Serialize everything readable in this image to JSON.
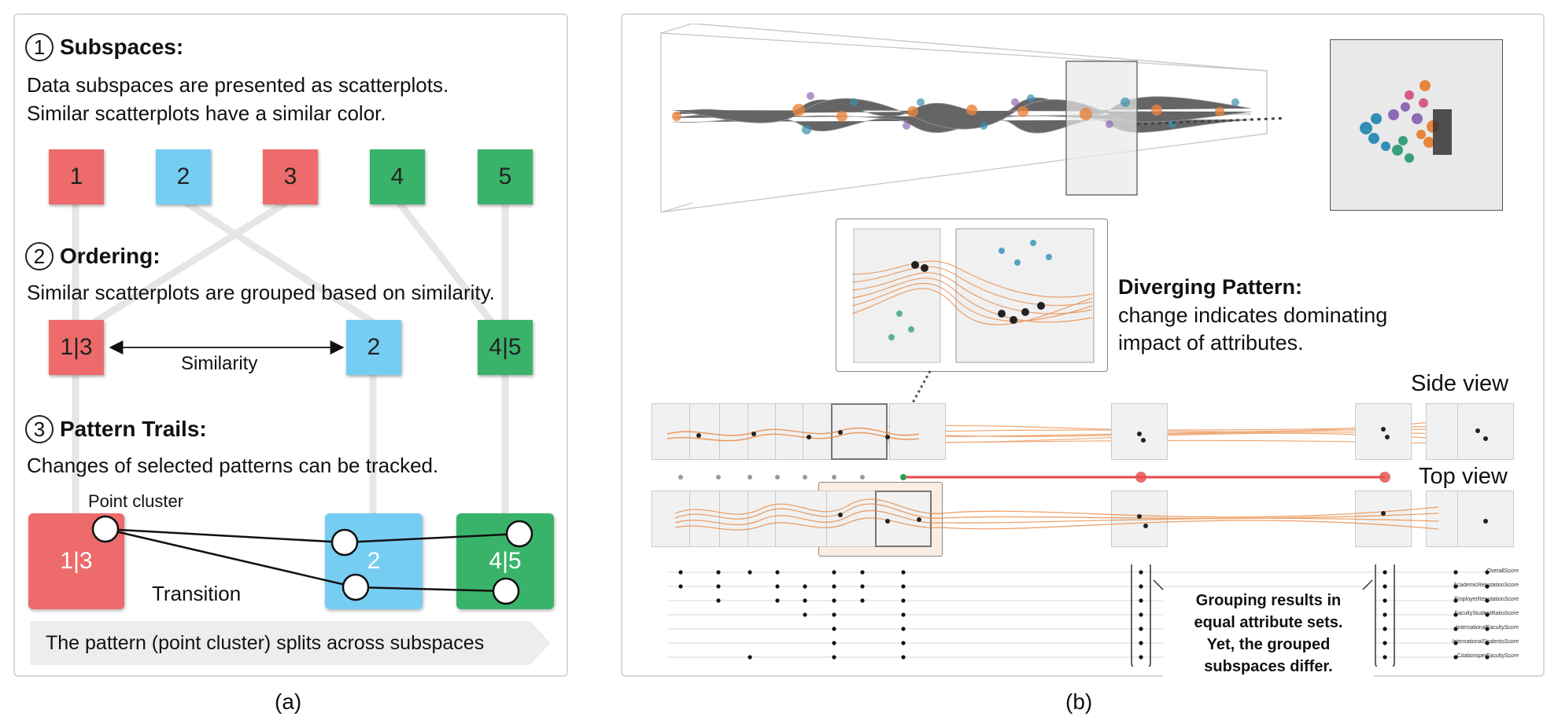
{
  "panel_a": {
    "sections": [
      {
        "num": "1",
        "title": "Subspaces:"
      },
      {
        "num": "2",
        "title": "Ordering:"
      },
      {
        "num": "3",
        "title": "Pattern Trails:"
      }
    ],
    "subspaces_desc": [
      "Data subspaces are presented as scatterplots.",
      "Similar scatterplots have a similar color."
    ],
    "boxes_row1": [
      "1",
      "2",
      "3",
      "4",
      "5"
    ],
    "ordering_desc": "Similar scatterplots are grouped based on similarity.",
    "boxes_row2": [
      "1|3",
      "2",
      "4|5"
    ],
    "similarity_label": "Similarity",
    "trails_desc": "Changes of selected patterns can be tracked.",
    "point_cluster_label": "Point cluster",
    "transition_label": "Transition",
    "boxes_row3": [
      "1|3",
      "2",
      "4|5"
    ],
    "arrow_text": "The pattern (point cluster) splits across subspaces",
    "colors": {
      "red": "#ee6b6b",
      "blue": "#76cdf2",
      "green": "#3ab36a"
    }
  },
  "panel_b": {
    "diverging_title": "Diverging Pattern:",
    "diverging_desc": [
      "change indicates dominating",
      "impact of attributes."
    ],
    "side_view": "Side view",
    "top_view": "Top view",
    "grouping_note": [
      "Grouping results in",
      "equal attribute sets.",
      "Yet, the grouped",
      "subspaces differ."
    ],
    "attributes": [
      "OverallScore",
      "AcademicReputationScore",
      "EmployerReputationScore",
      "FacultyStudentRatioScore",
      "InternationalFacultyScore",
      "InternationalStudentsScore",
      "CitationsperFacultyScore"
    ],
    "trail_color": "#e8843c",
    "track_color": "#e34a4a"
  },
  "captions": {
    "a": "(a)",
    "b": "(b)"
  }
}
